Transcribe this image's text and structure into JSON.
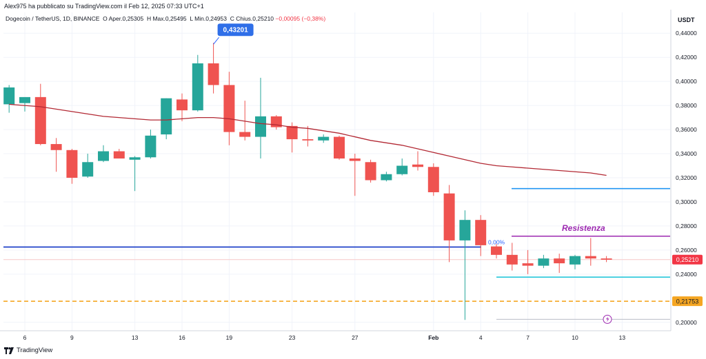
{
  "header": {
    "publisher": "Alex975 ha pubblicato su TradingView.com il Feb 12, 2025 07:33 UTC+1",
    "symbol": "Dogecoin / TetherUS, 1D, BINANCE",
    "open_label": "O",
    "open_text": "Aper.0,25305",
    "high_label": "H",
    "high_text": "Max.0,25495",
    "low_label": "L",
    "low_text": "Min.0,24953",
    "close_label": "C",
    "close_text": "Chius.0,25210",
    "change_text": "−0,00095 (−0,38%)",
    "currency": "USDT"
  },
  "footer": {
    "brand": "TradingView"
  },
  "colors": {
    "up": "#26a69a",
    "down": "#ef5350",
    "ma": "#b22833",
    "support_line": "#1e40c8",
    "resistance": "#9c27b0",
    "upper_level": "#2196f3",
    "lower_level": "#26c6da",
    "dashed_level": "#f5a623",
    "grid": "#f0f3fa"
  },
  "chart_data": {
    "type": "candlestick",
    "y_ticks": [
      "0,44000",
      "0,42000",
      "0,40000",
      "0,38000",
      "0,36000",
      "0,34000",
      "0,32000",
      "0,30000",
      "0,28000",
      "0,26000",
      "0,24000",
      "0,20000"
    ],
    "y_tick_values": [
      0.44,
      0.42,
      0.4,
      0.38,
      0.36,
      0.34,
      0.32,
      0.3,
      0.28,
      0.26,
      0.24,
      0.2
    ],
    "ylim": [
      0.193,
      0.447
    ],
    "x_ticks": [
      {
        "label": "6",
        "index": 1
      },
      {
        "label": "9",
        "index": 4
      },
      {
        "label": "13",
        "index": 8
      },
      {
        "label": "16",
        "index": 11
      },
      {
        "label": "19",
        "index": 14
      },
      {
        "label": "23",
        "index": 18
      },
      {
        "label": "27",
        "index": 22
      },
      {
        "label": "Feb",
        "index": 27
      },
      {
        "label": "4",
        "index": 30
      },
      {
        "label": "7",
        "index": 33
      },
      {
        "label": "10",
        "index": 36
      },
      {
        "label": "13",
        "index": 39
      }
    ],
    "candles": [
      {
        "o": 0.381,
        "h": 0.397,
        "l": 0.374,
        "c": 0.395
      },
      {
        "o": 0.382,
        "h": 0.386,
        "l": 0.375,
        "c": 0.387
      },
      {
        "o": 0.387,
        "h": 0.398,
        "l": 0.347,
        "c": 0.348
      },
      {
        "o": 0.348,
        "h": 0.353,
        "l": 0.325,
        "c": 0.343
      },
      {
        "o": 0.343,
        "h": 0.344,
        "l": 0.315,
        "c": 0.32
      },
      {
        "o": 0.321,
        "h": 0.34,
        "l": 0.32,
        "c": 0.333
      },
      {
        "o": 0.334,
        "h": 0.347,
        "l": 0.333,
        "c": 0.342
      },
      {
        "o": 0.342,
        "h": 0.344,
        "l": 0.336,
        "c": 0.336
      },
      {
        "o": 0.335,
        "h": 0.338,
        "l": 0.309,
        "c": 0.337
      },
      {
        "o": 0.337,
        "h": 0.36,
        "l": 0.336,
        "c": 0.355
      },
      {
        "o": 0.356,
        "h": 0.386,
        "l": 0.352,
        "c": 0.386
      },
      {
        "o": 0.385,
        "h": 0.39,
        "l": 0.367,
        "c": 0.376
      },
      {
        "o": 0.376,
        "h": 0.422,
        "l": 0.375,
        "c": 0.415
      },
      {
        "o": 0.415,
        "h": 0.432,
        "l": 0.39,
        "c": 0.397
      },
      {
        "o": 0.397,
        "h": 0.408,
        "l": 0.347,
        "c": 0.358
      },
      {
        "o": 0.358,
        "h": 0.384,
        "l": 0.351,
        "c": 0.354
      },
      {
        "o": 0.354,
        "h": 0.403,
        "l": 0.336,
        "c": 0.371
      },
      {
        "o": 0.371,
        "h": 0.372,
        "l": 0.36,
        "c": 0.362
      },
      {
        "o": 0.363,
        "h": 0.366,
        "l": 0.341,
        "c": 0.352
      },
      {
        "o": 0.352,
        "h": 0.363,
        "l": 0.346,
        "c": 0.351
      },
      {
        "o": 0.351,
        "h": 0.356,
        "l": 0.349,
        "c": 0.354
      },
      {
        "o": 0.354,
        "h": 0.355,
        "l": 0.335,
        "c": 0.336
      },
      {
        "o": 0.336,
        "h": 0.34,
        "l": 0.305,
        "c": 0.334
      },
      {
        "o": 0.333,
        "h": 0.335,
        "l": 0.316,
        "c": 0.318
      },
      {
        "o": 0.318,
        "h": 0.325,
        "l": 0.317,
        "c": 0.323
      },
      {
        "o": 0.323,
        "h": 0.336,
        "l": 0.322,
        "c": 0.33
      },
      {
        "o": 0.331,
        "h": 0.342,
        "l": 0.326,
        "c": 0.329
      },
      {
        "o": 0.329,
        "h": 0.332,
        "l": 0.305,
        "c": 0.308
      },
      {
        "o": 0.307,
        "h": 0.314,
        "l": 0.25,
        "c": 0.268
      },
      {
        "o": 0.268,
        "h": 0.293,
        "l": 0.202,
        "c": 0.285
      },
      {
        "o": 0.285,
        "h": 0.289,
        "l": 0.255,
        "c": 0.264
      },
      {
        "o": 0.263,
        "h": 0.265,
        "l": 0.253,
        "c": 0.256
      },
      {
        "o": 0.256,
        "h": 0.266,
        "l": 0.243,
        "c": 0.248
      },
      {
        "o": 0.249,
        "h": 0.26,
        "l": 0.24,
        "c": 0.247
      },
      {
        "o": 0.247,
        "h": 0.256,
        "l": 0.245,
        "c": 0.253
      },
      {
        "o": 0.253,
        "h": 0.257,
        "l": 0.241,
        "c": 0.249
      },
      {
        "o": 0.248,
        "h": 0.256,
        "l": 0.244,
        "c": 0.255
      },
      {
        "o": 0.255,
        "h": 0.27,
        "l": 0.247,
        "c": 0.253
      },
      {
        "o": 0.253,
        "h": 0.255,
        "l": 0.25,
        "c": 0.252
      }
    ],
    "moving_average": [
      0.381,
      0.38,
      0.379,
      0.377,
      0.375,
      0.373,
      0.371,
      0.37,
      0.369,
      0.368,
      0.368,
      0.369,
      0.37,
      0.37,
      0.369,
      0.367,
      0.365,
      0.364,
      0.362,
      0.361,
      0.359,
      0.357,
      0.354,
      0.351,
      0.349,
      0.347,
      0.344,
      0.341,
      0.338,
      0.335,
      0.332,
      0.33,
      0.329,
      0.328,
      0.327,
      0.326,
      0.325,
      0.324,
      0.322
    ],
    "levels": [
      {
        "name": "support-line",
        "value": 0.2625
      },
      {
        "name": "resistance-line",
        "value": 0.2715
      },
      {
        "name": "upper-level-line",
        "value": 0.311
      },
      {
        "name": "lower-level-line",
        "value": 0.2375
      },
      {
        "name": "dashed-level-line",
        "value": 0.2175
      },
      {
        "name": "bottom-grey-line",
        "value": 0.2025
      },
      {
        "name": "current-price-line",
        "value": 0.2521
      }
    ],
    "annotations": {
      "max_label": "0,43201",
      "max_value": 0.43201,
      "resistance_text": "Resistenza",
      "percent_text": "0,00%",
      "price_badge": "0,25210",
      "dashed_badge": "0,21753"
    }
  }
}
